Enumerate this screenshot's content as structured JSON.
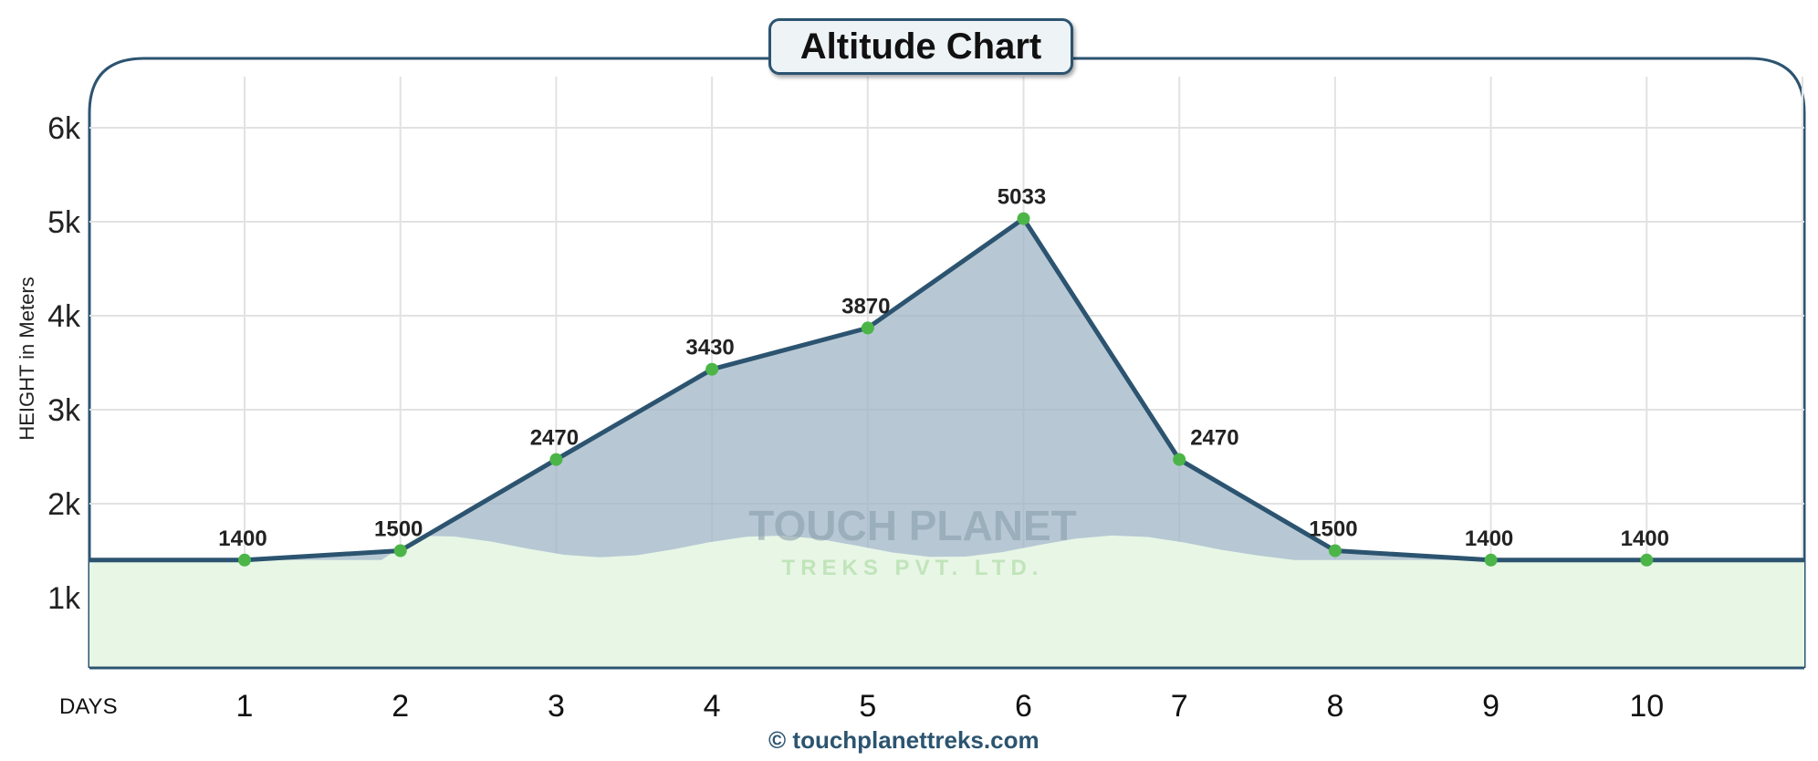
{
  "chart_data": {
    "type": "area",
    "title": "Altitude Chart",
    "xlabel": "DAYS",
    "ylabel": "HEIGHT in Meters",
    "x": [
      1,
      2,
      3,
      4,
      5,
      6,
      7,
      8,
      9,
      10
    ],
    "values": [
      1400,
      1500,
      2470,
      3430,
      3870,
      5033,
      2470,
      1500,
      1400,
      1400
    ],
    "yticks": [
      {
        "v": 1000,
        "label": "1k"
      },
      {
        "v": 2000,
        "label": "2k"
      },
      {
        "v": 3000,
        "label": "3k"
      },
      {
        "v": 4000,
        "label": "4k"
      },
      {
        "v": 5000,
        "label": "5k"
      },
      {
        "v": 6000,
        "label": "6k"
      }
    ],
    "ylim": [
      200,
      6600
    ],
    "grid": true,
    "colors": {
      "line": "#2c5470",
      "point": "#4cb548",
      "fill_low": "#e8f6e6",
      "fill_mountain": "#9fb5c6"
    }
  },
  "watermark": {
    "line1": "TOUCH PLANET",
    "line2": "TREKS PVT. LTD."
  },
  "footer": {
    "copyright_icon": "©",
    "site": "touchplanettreks.com"
  }
}
